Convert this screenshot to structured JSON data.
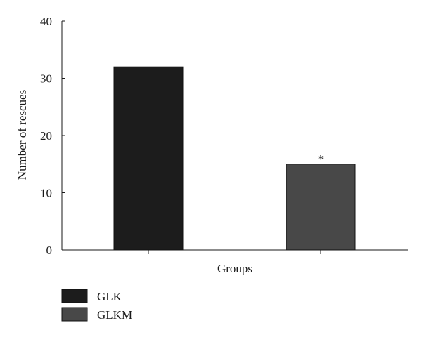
{
  "chart_data": {
    "type": "bar",
    "categories": [
      "GLK",
      "GLKM"
    ],
    "values": [
      32,
      15
    ],
    "annotations": [
      "",
      "*"
    ],
    "xlabel": "Groups",
    "ylabel": "Number of rescues",
    "ylim": [
      0,
      40
    ],
    "yticks": [
      0,
      10,
      20,
      30,
      40
    ],
    "grid": false,
    "legend": {
      "placement": "bottom-left",
      "entries": [
        "GLK",
        "GLKM"
      ]
    },
    "colors": [
      "#1c1c1c",
      "#484848"
    ]
  }
}
